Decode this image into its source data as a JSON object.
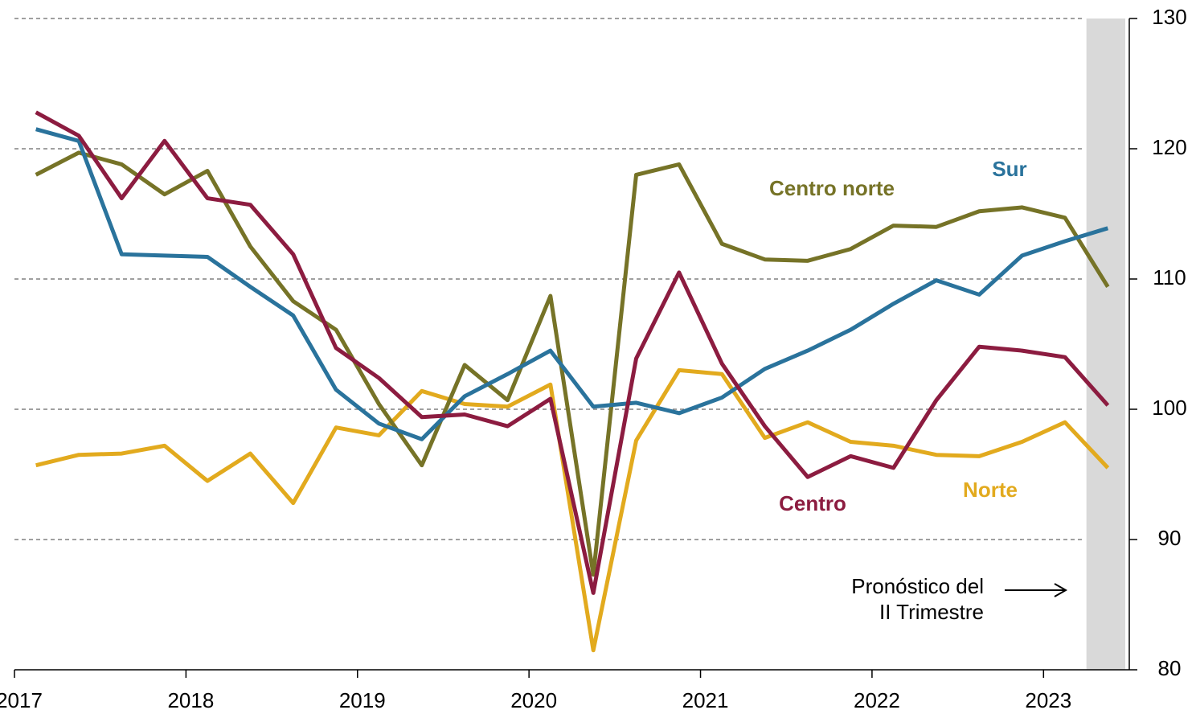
{
  "chart_data": {
    "type": "line",
    "x": [
      2017.125,
      2017.375,
      2017.625,
      2017.875,
      2018.125,
      2018.375,
      2018.625,
      2018.875,
      2019.125,
      2019.375,
      2019.625,
      2019.875,
      2020.125,
      2020.375,
      2020.625,
      2020.875,
      2021.125,
      2021.375,
      2021.625,
      2021.875,
      2022.125,
      2022.375,
      2022.625,
      2022.875,
      2023.125,
      2023.375
    ],
    "series": [
      {
        "name": "Centro norte",
        "color": "#767327",
        "values": [
          118.0,
          119.7,
          118.8,
          116.5,
          118.3,
          112.5,
          108.3,
          106.1,
          100.4,
          95.7,
          103.4,
          100.7,
          108.7,
          87.3,
          118.0,
          118.8,
          112.7,
          111.5,
          111.4,
          112.3,
          114.1,
          114.0,
          115.2,
          115.5,
          114.7,
          109.4
        ]
      },
      {
        "name": "Sur",
        "color": "#2a739c",
        "values": [
          121.5,
          120.6,
          111.9,
          111.8,
          111.7,
          109.4,
          107.2,
          101.5,
          98.9,
          97.7,
          101.0,
          102.7,
          104.5,
          100.2,
          100.5,
          99.7,
          100.9,
          103.1,
          104.5,
          106.1,
          108.1,
          109.9,
          108.8,
          111.8,
          112.9,
          113.9
        ]
      },
      {
        "name": "Centro",
        "color": "#8c1c40",
        "values": [
          122.8,
          121.0,
          116.2,
          120.6,
          116.2,
          115.7,
          111.9,
          104.7,
          102.4,
          99.4,
          99.6,
          98.7,
          100.8,
          85.9,
          103.9,
          110.5,
          103.5,
          98.7,
          94.8,
          96.4,
          95.5,
          100.7,
          104.8,
          104.5,
          104.0,
          100.3
        ]
      },
      {
        "name": "Norte",
        "color": "#e2aa1e",
        "values": [
          95.7,
          96.5,
          96.6,
          97.2,
          94.5,
          96.6,
          92.8,
          98.6,
          98.0,
          101.4,
          100.4,
          100.2,
          101.9,
          81.5,
          97.6,
          103.0,
          102.7,
          97.8,
          99.0,
          97.5,
          97.2,
          96.5,
          96.4,
          97.5,
          99.0,
          95.5
        ]
      }
    ],
    "xlim": [
      2017,
      2023.5
    ],
    "xticks": [
      2017,
      2018,
      2019,
      2020,
      2021,
      2022,
      2023
    ],
    "ylim": [
      80,
      130
    ],
    "yticks": [
      80,
      90,
      100,
      110,
      120,
      130
    ],
    "y_axis_side": "right",
    "grid": true,
    "forecast_shade": [
      2023.25,
      2023.5
    ],
    "annotation": [
      "Pronóstico del",
      "II Trimestre"
    ]
  }
}
